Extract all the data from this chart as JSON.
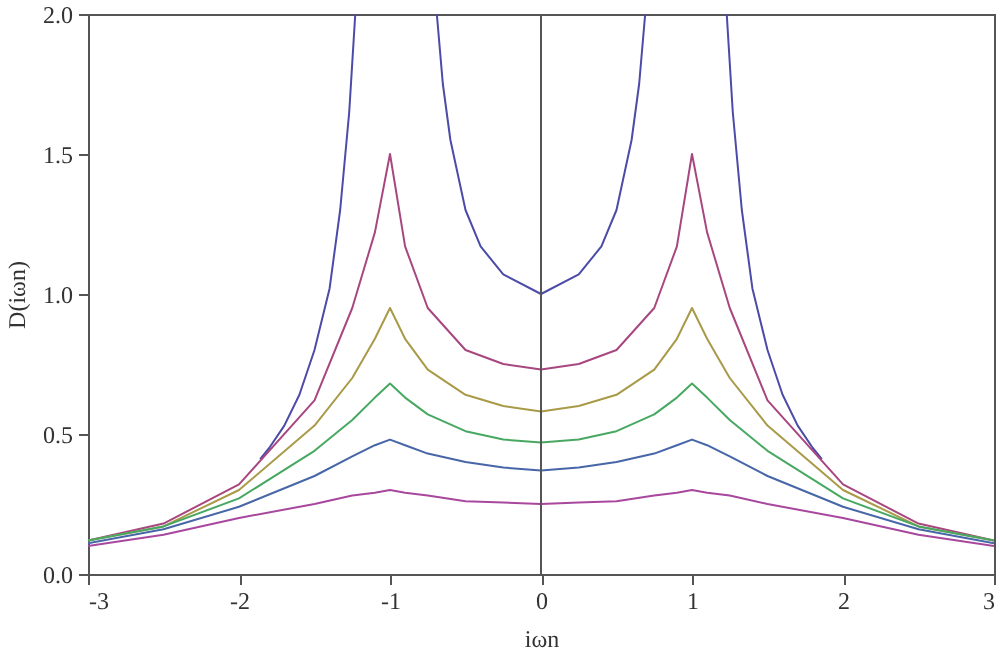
{
  "chart_data": {
    "type": "line",
    "xlabel": "iωn",
    "ylabel": "D(iωn)",
    "x": [
      -3,
      -2.5,
      -2,
      -1.5,
      -1.25,
      -1.1,
      -1,
      -0.9,
      -0.75,
      -0.5,
      -0.25,
      0,
      0.25,
      0.5,
      0.75,
      0.9,
      1,
      1.1,
      1.25,
      1.5,
      2,
      2.5,
      3
    ],
    "series": [
      {
        "color": "#4b4ba8",
        "x": [
          -1.86,
          -1.8,
          -1.7,
          -1.6,
          -1.5,
          -1.4,
          -1.33,
          -1.27,
          -1.23,
          -1,
          -0.69,
          -0.65,
          -0.6,
          -0.5,
          -0.4,
          -0.25,
          0,
          0.25,
          0.4,
          0.5,
          0.6,
          0.65,
          0.69,
          1,
          1.23,
          1.27,
          1.33,
          1.4,
          1.5,
          1.6,
          1.7,
          1.8,
          1.86
        ],
        "values": [
          0.41,
          0.45,
          0.53,
          0.64,
          0.8,
          1.02,
          1.3,
          1.65,
          2.0,
          null,
          2.0,
          1.75,
          1.55,
          1.3,
          1.17,
          1.07,
          1.0,
          1.07,
          1.17,
          1.3,
          1.55,
          1.75,
          2.0,
          null,
          2.0,
          1.65,
          1.3,
          1.02,
          0.8,
          0.64,
          0.53,
          0.45,
          0.41
        ]
      },
      {
        "color": "#a8477f",
        "values": [
          0.12,
          0.18,
          0.32,
          0.62,
          0.95,
          1.22,
          1.5,
          1.17,
          0.95,
          0.8,
          0.75,
          0.73,
          0.75,
          0.8,
          0.95,
          1.17,
          1.5,
          1.22,
          0.95,
          0.62,
          0.32,
          0.18,
          0.12
        ]
      },
      {
        "color": "#a89a47",
        "values": [
          0.12,
          0.17,
          0.3,
          0.53,
          0.7,
          0.84,
          0.95,
          0.84,
          0.73,
          0.64,
          0.6,
          0.58,
          0.6,
          0.64,
          0.73,
          0.84,
          0.95,
          0.84,
          0.7,
          0.53,
          0.3,
          0.17,
          0.12
        ]
      },
      {
        "color": "#47a862",
        "values": [
          0.12,
          0.17,
          0.27,
          0.44,
          0.55,
          0.63,
          0.68,
          0.63,
          0.57,
          0.51,
          0.48,
          0.47,
          0.48,
          0.51,
          0.57,
          0.63,
          0.68,
          0.63,
          0.55,
          0.44,
          0.27,
          0.17,
          0.12
        ]
      },
      {
        "color": "#4766a8",
        "values": [
          0.11,
          0.16,
          0.24,
          0.35,
          0.42,
          0.46,
          0.48,
          0.46,
          0.43,
          0.4,
          0.38,
          0.37,
          0.38,
          0.4,
          0.43,
          0.46,
          0.48,
          0.46,
          0.42,
          0.35,
          0.24,
          0.16,
          0.11
        ]
      },
      {
        "color": "#a8479e",
        "values": [
          0.1,
          0.14,
          0.2,
          0.25,
          0.28,
          0.29,
          0.3,
          0.29,
          0.28,
          0.26,
          0.255,
          0.25,
          0.255,
          0.26,
          0.28,
          0.29,
          0.3,
          0.29,
          0.28,
          0.25,
          0.2,
          0.14,
          0.1
        ]
      }
    ],
    "xlim": [
      -3,
      3
    ],
    "xticks": [
      -3,
      -2,
      -1,
      0,
      1,
      2,
      3
    ],
    "ylim": [
      0,
      2
    ],
    "yticks": [
      {
        "value": 0,
        "label": "0.0"
      },
      {
        "value": 0.5,
        "label": "0.5"
      },
      {
        "value": 1,
        "label": "1.0"
      },
      {
        "value": 1.5,
        "label": "1.5"
      },
      {
        "value": 2,
        "label": "2.0"
      }
    ],
    "ref_lines": [
      {
        "axis": "x",
        "value": 0,
        "color": "#555555"
      }
    ]
  }
}
